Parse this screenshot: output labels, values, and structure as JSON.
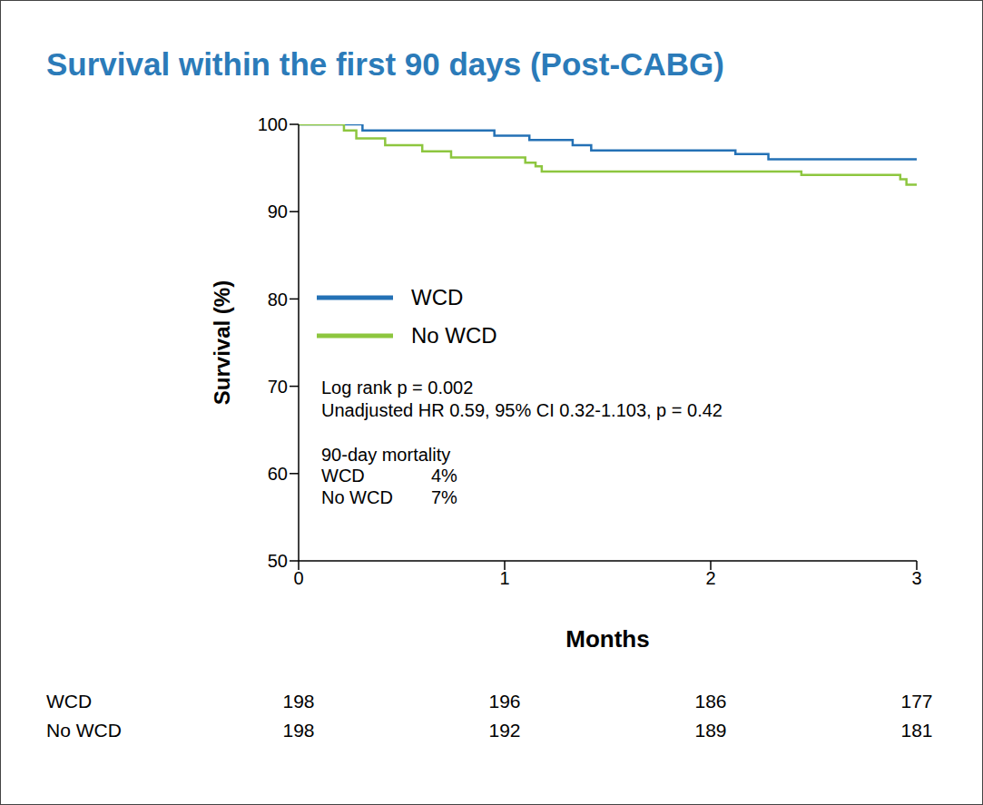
{
  "chart_data": {
    "type": "line",
    "title": "Survival within the first 90 days (Post-CABG)",
    "x_label": "Months",
    "y_label": "Survival (%)",
    "x": [
      0,
      0.22,
      0.28,
      0.31,
      0.42,
      0.6,
      0.74,
      0.95,
      1.1,
      1.12,
      1.15,
      1.18,
      1.33,
      1.42,
      2.12,
      2.28,
      2.44,
      2.92,
      2.95,
      3
    ],
    "series": [
      {
        "name": "WCD",
        "color": "#2471b5",
        "line_style": "step",
        "values": [
          100,
          100,
          100,
          99.3,
          99.3,
          99.3,
          99.3,
          98.7,
          98.7,
          98.2,
          98.2,
          98.2,
          97.6,
          97.0,
          96.6,
          96.0,
          96.0,
          96.0,
          96.0,
          96.0
        ]
      },
      {
        "name": "No WCD",
        "color": "#8dc63f",
        "line_style": "step",
        "values": [
          100,
          99.3,
          98.4,
          98.4,
          97.6,
          96.9,
          96.2,
          96.2,
          95.6,
          95.6,
          95.2,
          94.6,
          94.6,
          94.6,
          94.6,
          94.6,
          94.2,
          93.7,
          93.1,
          93.1
        ]
      }
    ],
    "xlim": [
      0,
      3
    ],
    "xticks": [
      0,
      1,
      2,
      3
    ],
    "ylim": [
      50,
      100
    ],
    "yticks": [
      50,
      60,
      70,
      80,
      90,
      100
    ],
    "grid": false,
    "legend": "left",
    "annotations": [
      "Log rank p = 0.002",
      "Unadjusted HR 0.59, 95% CI 0.32-1.103, p = 0.42"
    ],
    "mortality": {
      "title": "90-day mortality",
      "rows": [
        [
          "WCD",
          "4%"
        ],
        [
          "No WCD",
          "7%"
        ]
      ]
    },
    "at_risk": {
      "x": [
        0,
        1,
        2,
        3
      ],
      "series": [
        {
          "name": "WCD",
          "values": [
            198,
            196,
            186,
            177
          ]
        },
        {
          "name": "No WCD",
          "values": [
            198,
            192,
            189,
            181
          ]
        }
      ]
    }
  }
}
